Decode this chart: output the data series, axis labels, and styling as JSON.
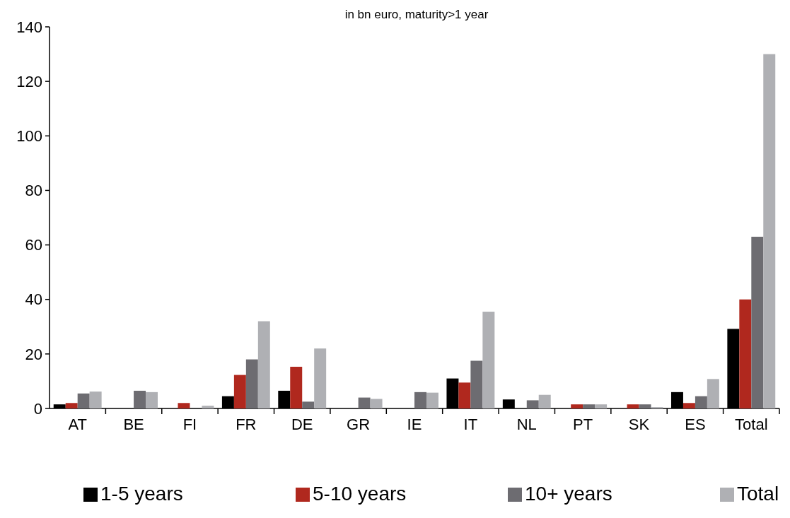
{
  "chart_data": {
    "type": "bar",
    "title": "in bn euro, maturity>1  year",
    "categories": [
      "AT",
      "BE",
      "FI",
      "FR",
      "DE",
      "GR",
      "IE",
      "IT",
      "NL",
      "PT",
      "SK",
      "ES",
      "Total"
    ],
    "series": [
      {
        "name": "1-5 years",
        "color": "#000000",
        "values": [
          1.5,
          null,
          null,
          4.5,
          6.5,
          null,
          null,
          11,
          3.3,
          null,
          null,
          6,
          29.2
        ]
      },
      {
        "name": "5-10 years",
        "color": "#b0281e",
        "values": [
          2,
          null,
          2,
          12.3,
          15.3,
          null,
          null,
          9.5,
          null,
          1.5,
          1.5,
          2,
          40
        ]
      },
      {
        "name": "10+ years",
        "color": "#6d6c71",
        "values": [
          5.5,
          6.5,
          null,
          18,
          2.5,
          4,
          6,
          17.5,
          3,
          1.5,
          1.5,
          4.5,
          63
        ]
      },
      {
        "name": "Total",
        "color": "#afb0b4",
        "values": [
          6.2,
          6,
          1,
          32,
          22,
          3.5,
          5.8,
          35.5,
          5,
          1.5,
          0.5,
          10.8,
          130
        ]
      }
    ],
    "ylim": [
      0,
      140
    ],
    "yticks": [
      0,
      20,
      40,
      60,
      80,
      100,
      120,
      140
    ],
    "grid": false,
    "legend": "bottom"
  }
}
